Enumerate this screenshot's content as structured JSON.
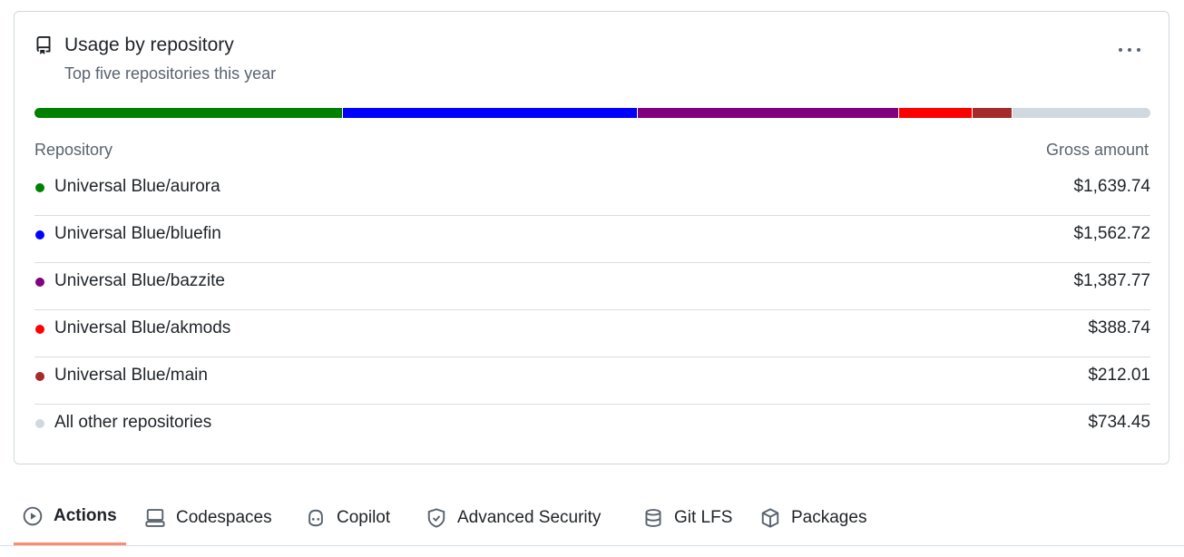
{
  "card": {
    "title": "Usage by repository",
    "subtitle": "Top five repositories this year",
    "columns": [
      "Repository",
      "Gross amount"
    ],
    "rows": [
      {
        "name": "Universal Blue/aurora",
        "color": "#008000",
        "amount": {
          "value": 1639.74,
          "label": "$1,639.74"
        }
      },
      {
        "name": "Universal Blue/bluefin",
        "color": "#0000ff",
        "amount": {
          "value": 1562.72,
          "label": "$1,562.72"
        }
      },
      {
        "name": "Universal Blue/bazzite",
        "color": "#800080",
        "amount": {
          "value": 1387.77,
          "label": "$1,387.77"
        }
      },
      {
        "name": "Universal Blue/akmods",
        "color": "#ff0000",
        "amount": {
          "value": 388.74,
          "label": "$388.74"
        }
      },
      {
        "name": "Universal Blue/main",
        "color": "#a52a2a",
        "amount": {
          "value": 212.01,
          "label": "$212.01"
        }
      },
      {
        "name": "All other repositories",
        "color": "#d1d9e0",
        "amount": {
          "value": 734.45,
          "label": "$734.45"
        }
      }
    ]
  },
  "tabs": [
    {
      "label": "Actions",
      "active": true
    },
    {
      "label": "Codespaces",
      "active": false
    },
    {
      "label": "Copilot",
      "active": false
    },
    {
      "label": "Advanced Security",
      "active": false
    },
    {
      "label": "Git LFS",
      "active": false
    },
    {
      "label": "Packages",
      "active": false
    }
  ]
}
